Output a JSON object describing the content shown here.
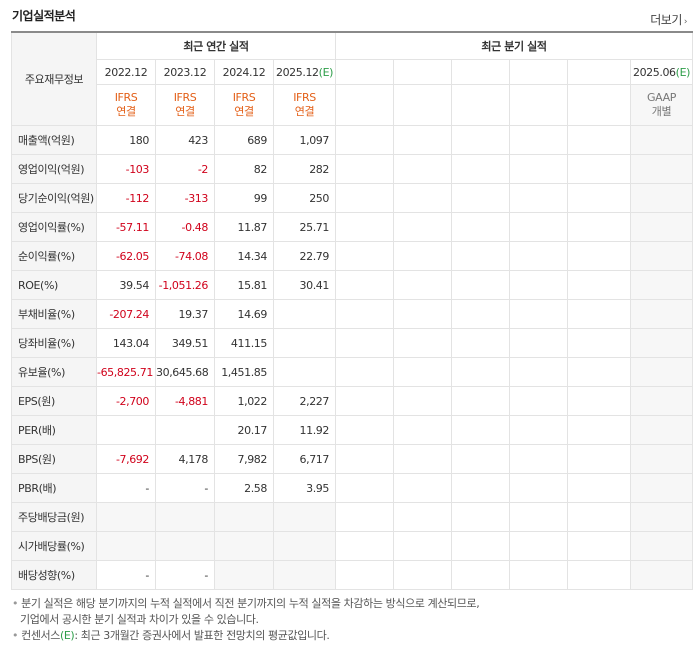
{
  "title": "기업실적분석",
  "more_label": "더보기",
  "header": {
    "row_label": "주요재무정보",
    "annual_group": "최근 연간 실적",
    "quarter_group": "최근 분기 실적",
    "annual_years": [
      "2022.12",
      "2023.12",
      "2024.12",
      "2025.12(E)"
    ],
    "annual_types": [
      [
        "IFRS",
        "연결"
      ],
      [
        "IFRS",
        "연결"
      ],
      [
        "IFRS",
        "연결"
      ],
      [
        "IFRS",
        "연결"
      ]
    ],
    "quarter_last_year": "2025.06(E)",
    "quarter_last_type": [
      "GAAP",
      "개별"
    ]
  },
  "rows": [
    {
      "label": "매출액(억원)",
      "values": [
        "180",
        "423",
        "689",
        "1,097"
      ]
    },
    {
      "label": "영업이익(억원)",
      "values": [
        "-103",
        "-2",
        "82",
        "282"
      ]
    },
    {
      "label": "당기순이익(억원)",
      "values": [
        "-112",
        "-313",
        "99",
        "250"
      ]
    },
    {
      "label": "영업이익률(%)",
      "values": [
        "-57.11",
        "-0.48",
        "11.87",
        "25.71"
      ]
    },
    {
      "label": "순이익률(%)",
      "values": [
        "-62.05",
        "-74.08",
        "14.34",
        "22.79"
      ]
    },
    {
      "label": "ROE(%)",
      "values": [
        "39.54",
        "-1,051.26",
        "15.81",
        "30.41"
      ]
    },
    {
      "label": "부채비율(%)",
      "values": [
        "-207.24",
        "19.37",
        "14.69",
        ""
      ]
    },
    {
      "label": "당좌비율(%)",
      "values": [
        "143.04",
        "349.51",
        "411.15",
        ""
      ]
    },
    {
      "label": "유보율(%)",
      "values": [
        "-65,825.71",
        "30,645.68",
        "1,451.85",
        ""
      ]
    },
    {
      "label": "EPS(원)",
      "values": [
        "-2,700",
        "-4,881",
        "1,022",
        "2,227"
      ]
    },
    {
      "label": "PER(배)",
      "values": [
        "",
        "",
        "20.17",
        "11.92"
      ]
    },
    {
      "label": "BPS(원)",
      "values": [
        "-7,692",
        "4,178",
        "7,982",
        "6,717"
      ]
    },
    {
      "label": "PBR(배)",
      "values": [
        "-",
        "-",
        "2.58",
        "3.95"
      ]
    },
    {
      "label": "주당배당금(원)",
      "values": [
        "",
        "",
        "",
        ""
      ]
    },
    {
      "label": "시가배당률(%)",
      "values": [
        "",
        "",
        "",
        ""
      ]
    },
    {
      "label": "배당성향(%)",
      "values": [
        "-",
        "-",
        "",
        ""
      ]
    }
  ],
  "notes": {
    "line1": "분기 실적은 해당 분기까지의 누적 실적에서 직전 분기까지의 누적 실적을 차감하는 방식으로 계산되므로,",
    "line2": "기업에서 공시한 분기 실적과 차이가 있을 수 있습니다.",
    "line3_pre": "컨센서스",
    "line3_e": "(E)",
    "line3_post": ": 최근 3개월간 증권사에서 발표한 전망치의 평균값입니다."
  }
}
